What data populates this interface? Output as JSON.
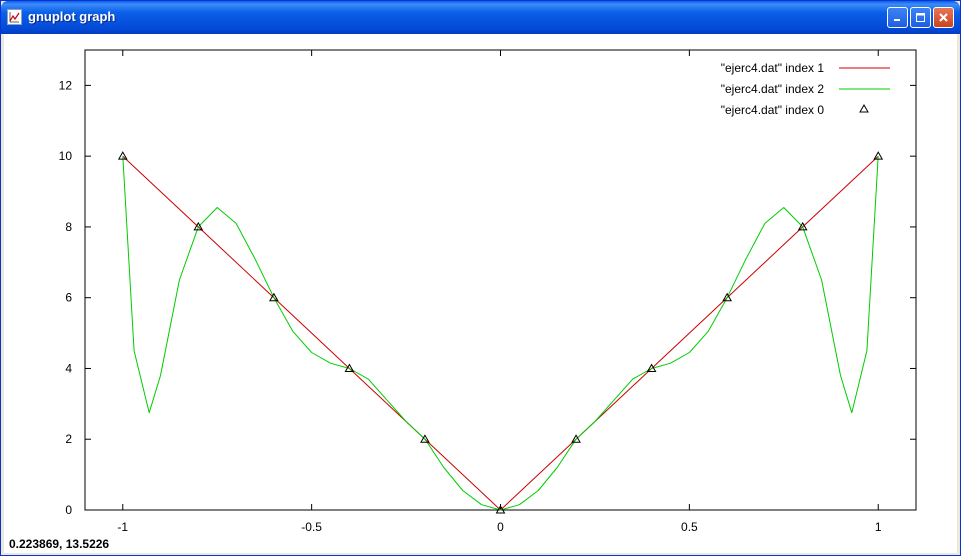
{
  "window": {
    "title": "gnuplot graph",
    "icon": "gnuplot-app-icon",
    "controls": {
      "minimize": "minimize-icon",
      "maximize": "maximize-icon",
      "close": "close-icon"
    }
  },
  "status": {
    "coordinates": "0.223869, 13.5226"
  },
  "colors": {
    "series1": "#cc0000",
    "series2": "#00cc00",
    "points": "#000000",
    "axis_text_y": "#000000"
  },
  "chart_data": {
    "type": "line",
    "title": "",
    "xlabel": "",
    "ylabel": "",
    "xlim": [
      -1.1,
      1.1
    ],
    "ylim": [
      0,
      13
    ],
    "xticks": [
      -1,
      -0.5,
      0,
      0.5,
      1
    ],
    "xtick_labels": [
      "-1",
      "-0.5",
      "0",
      "0.5",
      "1"
    ],
    "yticks": [
      0,
      2,
      4,
      6,
      8,
      10,
      12
    ],
    "ytick_labels": [
      "0",
      "2",
      "4",
      "6",
      "8",
      "10",
      "12"
    ],
    "grid": false,
    "legend_position": "top-right",
    "series": [
      {
        "name": "\"ejerc4.dat\" index 1",
        "style": "line",
        "color": "#cc0000",
        "x": [
          -1,
          -0.8,
          -0.6,
          -0.4,
          -0.2,
          0,
          0.2,
          0.4,
          0.6,
          0.8,
          1
        ],
        "y": [
          10,
          8,
          6,
          4,
          2,
          0,
          2,
          4,
          6,
          8,
          10
        ]
      },
      {
        "name": "\"ejerc4.dat\" index 2",
        "style": "line",
        "color": "#00cc00",
        "x": [
          -1,
          -0.97,
          -0.93,
          -0.9,
          -0.85,
          -0.8,
          -0.75,
          -0.7,
          -0.65,
          -0.6,
          -0.55,
          -0.5,
          -0.45,
          -0.4,
          -0.35,
          -0.3,
          -0.25,
          -0.2,
          -0.15,
          -0.1,
          -0.05,
          0,
          0.05,
          0.1,
          0.15,
          0.2,
          0.25,
          0.3,
          0.35,
          0.4,
          0.45,
          0.5,
          0.55,
          0.6,
          0.65,
          0.7,
          0.75,
          0.8,
          0.85,
          0.9,
          0.93,
          0.97,
          1
        ],
        "y": [
          10,
          4.5,
          2.75,
          3.8,
          6.5,
          8.0,
          8.55,
          8.1,
          7.1,
          6.0,
          5.05,
          4.45,
          4.15,
          4.0,
          3.7,
          3.1,
          2.5,
          2.0,
          1.2,
          0.55,
          0.15,
          0,
          0.15,
          0.55,
          1.2,
          2.0,
          2.5,
          3.1,
          3.7,
          4.0,
          4.15,
          4.45,
          5.05,
          6.0,
          7.1,
          8.1,
          8.55,
          8.0,
          6.5,
          3.8,
          2.75,
          4.5,
          10
        ]
      },
      {
        "name": "\"ejerc4.dat\" index 0",
        "style": "points",
        "marker": "triangle",
        "color": "#000000",
        "x": [
          -1,
          -0.8,
          -0.6,
          -0.4,
          -0.2,
          0,
          0.2,
          0.4,
          0.6,
          0.8,
          1
        ],
        "y": [
          10,
          8,
          6,
          4,
          2,
          0,
          2,
          4,
          6,
          8,
          10
        ]
      }
    ]
  }
}
